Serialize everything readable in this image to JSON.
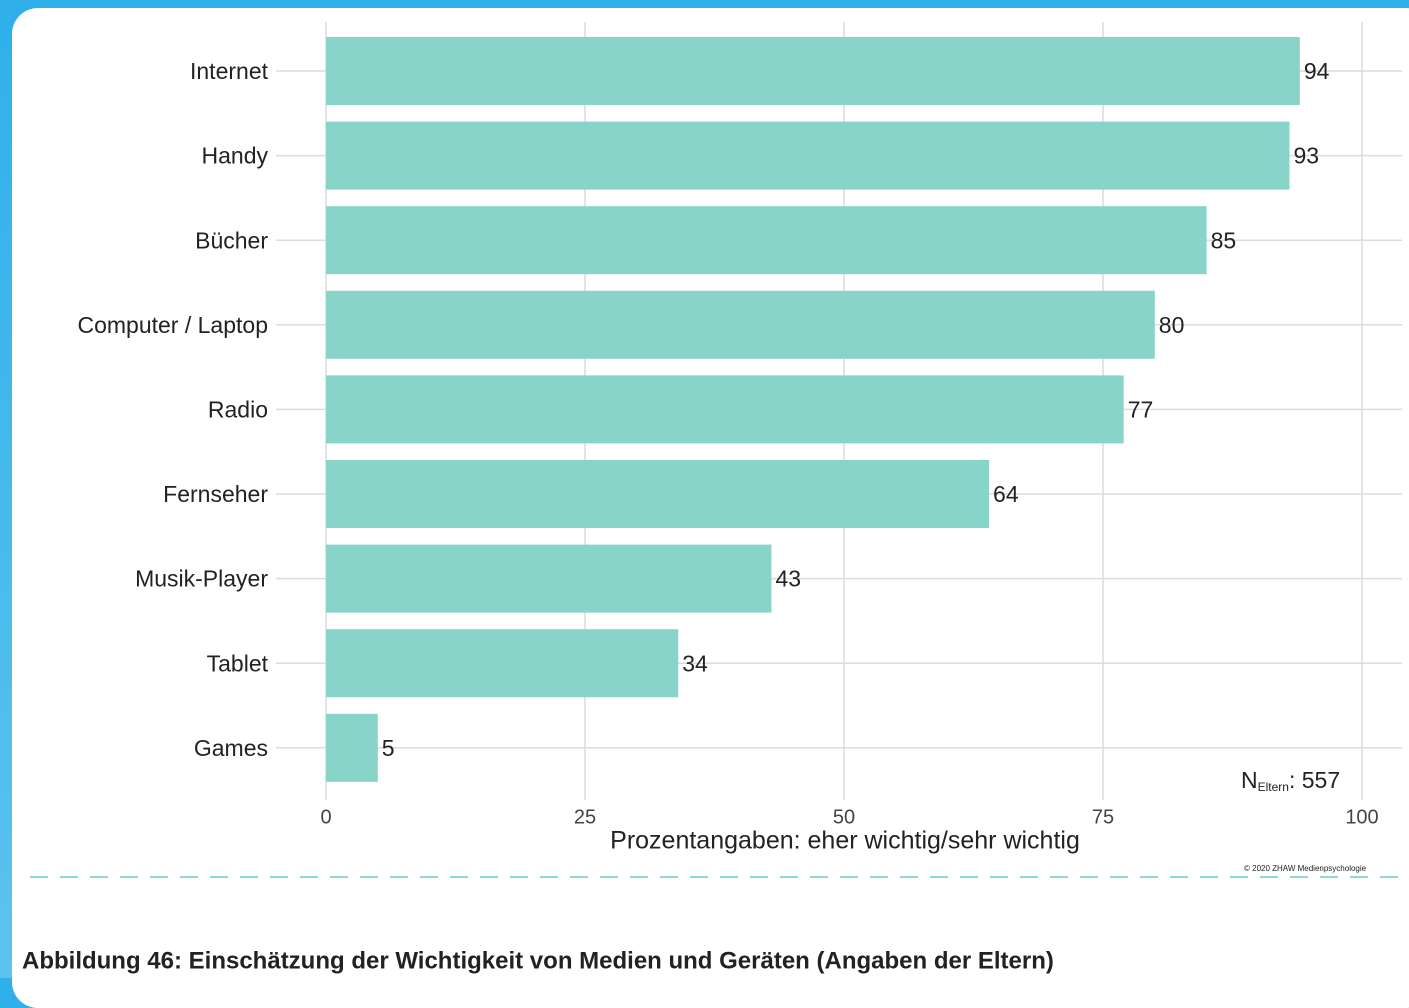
{
  "chart_data": {
    "type": "bar",
    "orientation": "horizontal",
    "categories": [
      "Internet",
      "Handy",
      "Bücher",
      "Computer / Laptop",
      "Radio",
      "Fernseher",
      "Musik-Player",
      "Tablet",
      "Games"
    ],
    "values": [
      94,
      93,
      85,
      80,
      77,
      64,
      43,
      34,
      5
    ],
    "color": "#88d4c9",
    "xlim": [
      0,
      100
    ],
    "xticks": [
      0,
      25,
      50,
      75,
      100
    ],
    "grid": true,
    "xlabel": "Prozentangaben: eher wichtig/sehr wichtig",
    "annotation": {
      "main": "N",
      "sub": "Eltern",
      "rest": ": 557"
    },
    "copyright": "© 2020 ZHAW Medienpsychologie",
    "caption": "Abbildung 46: Einschätzung der Wichtigkeit von Medien und Geräten (Angaben der Eltern)"
  }
}
